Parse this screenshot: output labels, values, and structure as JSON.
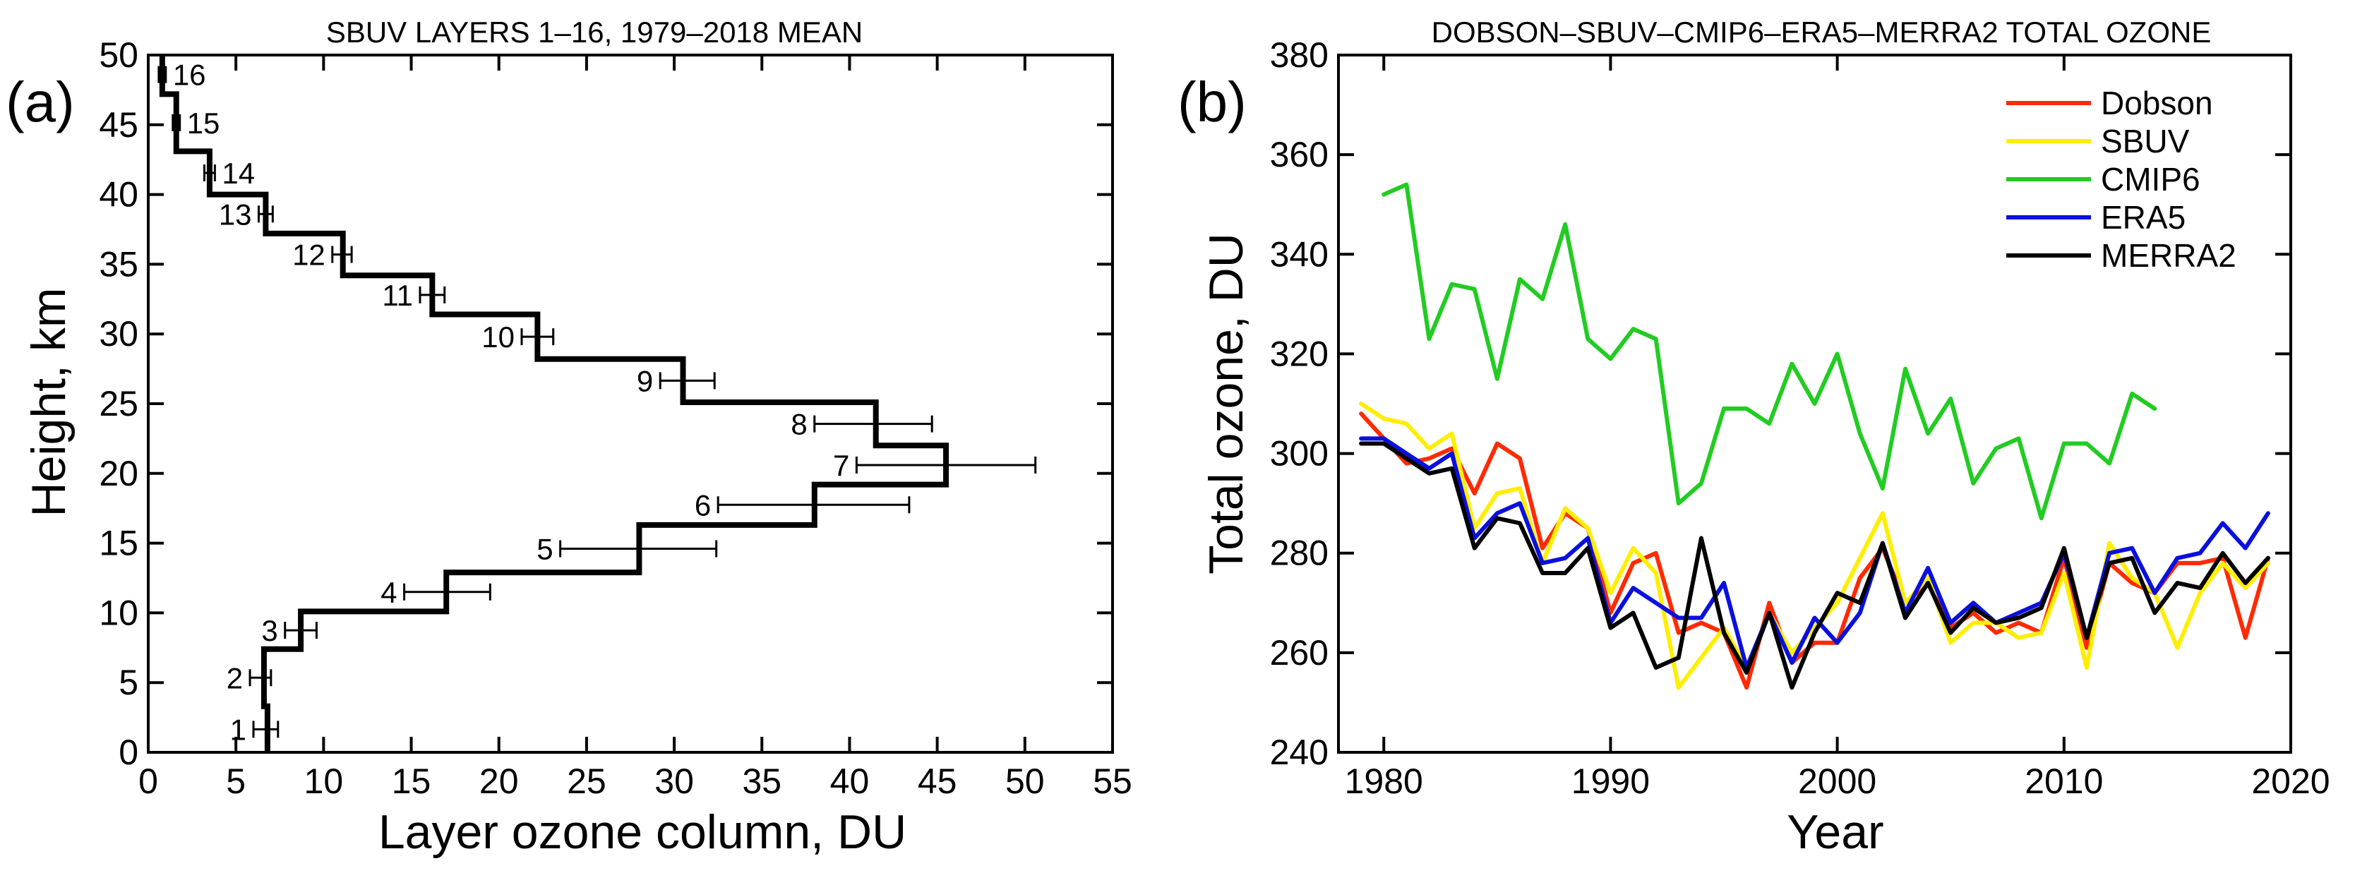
{
  "chart_data": [
    {
      "panel_label": "(a)",
      "type": "line",
      "orientation": "vertical-profile",
      "title": "SBUV LAYERS 1–16, 1979–2018 MEAN",
      "xlabel": "Layer  ozone column, DU",
      "ylabel": "Height, km",
      "xlim": [
        0,
        55
      ],
      "ylim": [
        0,
        50
      ],
      "xticks": [
        0,
        5,
        10,
        15,
        20,
        25,
        30,
        35,
        40,
        45,
        50,
        55
      ],
      "yticks": [
        0,
        5,
        10,
        15,
        20,
        25,
        30,
        35,
        40,
        45,
        50
      ],
      "grid": false,
      "layers": [
        {
          "label": "1",
          "bottom": 0,
          "top": 3.3,
          "value": 6.8,
          "err_lo": 6.0,
          "err_hi": 7.4
        },
        {
          "label": "2",
          "bottom": 3.3,
          "top": 7.4,
          "value": 6.6,
          "err_lo": 5.8,
          "err_hi": 7.0
        },
        {
          "label": "3",
          "bottom": 7.4,
          "top": 10.1,
          "value": 8.7,
          "err_lo": 7.8,
          "err_hi": 9.6
        },
        {
          "label": "4",
          "bottom": 10.1,
          "top": 12.9,
          "value": 17.0,
          "err_lo": 14.6,
          "err_hi": 19.5
        },
        {
          "label": "5",
          "bottom": 12.9,
          "top": 16.3,
          "value": 28.0,
          "err_lo": 23.5,
          "err_hi": 32.4
        },
        {
          "label": "6",
          "bottom": 16.3,
          "top": 19.2,
          "value": 38.0,
          "err_lo": 32.5,
          "err_hi": 43.4
        },
        {
          "label": "7",
          "bottom": 19.2,
          "top": 22.0,
          "value": 45.5,
          "err_lo": 40.4,
          "err_hi": 50.6
        },
        {
          "label": "8",
          "bottom": 22.0,
          "top": 25.1,
          "value": 41.5,
          "err_lo": 38.0,
          "err_hi": 44.7
        },
        {
          "label": "9",
          "bottom": 25.1,
          "top": 28.2,
          "value": 30.5,
          "err_lo": 29.2,
          "err_hi": 32.3
        },
        {
          "label": "10",
          "bottom": 28.2,
          "top": 31.4,
          "value": 22.2,
          "err_lo": 21.3,
          "err_hi": 23.1
        },
        {
          "label": "11",
          "bottom": 31.4,
          "top": 34.2,
          "value": 16.2,
          "err_lo": 15.5,
          "err_hi": 16.9
        },
        {
          "label": "12",
          "bottom": 34.2,
          "top": 37.2,
          "value": 11.1,
          "err_lo": 10.5,
          "err_hi": 11.6
        },
        {
          "label": "13",
          "bottom": 37.2,
          "top": 40.0,
          "value": 6.7,
          "err_lo": 6.3,
          "err_hi": 7.1
        },
        {
          "label": "14",
          "bottom": 40.0,
          "top": 43.1,
          "value": 3.5,
          "err_lo": 3.2,
          "err_hi": 3.8
        },
        {
          "label": "15",
          "bottom": 43.1,
          "top": 47.2,
          "value": 1.6,
          "err_lo": 1.4,
          "err_hi": 1.8
        },
        {
          "label": "16",
          "bottom": 47.2,
          "top": 50.0,
          "value": 0.8,
          "err_lo": 0.6,
          "err_hi": 1.0
        }
      ]
    },
    {
      "panel_label": "(b)",
      "type": "line",
      "title": "DOBSON–SBUV–CMIP6–ERA5–MERRA2 TOTAL OZONE",
      "xlabel": "Year",
      "ylabel": "Total ozone, DU",
      "xlim": [
        1978,
        2020
      ],
      "ylim": [
        240,
        380
      ],
      "xticks": [
        1980,
        1990,
        2000,
        2010,
        2020
      ],
      "yticks": [
        240,
        260,
        280,
        300,
        320,
        340,
        360,
        380
      ],
      "grid": false,
      "legend_position": "top-right",
      "series": [
        {
          "name": "Dobson",
          "color": "#ff2a00",
          "x_start": 1979,
          "values": [
            308,
            303,
            298,
            299,
            301,
            292,
            302,
            299,
            281,
            288,
            285,
            268,
            278,
            280,
            264,
            266,
            264,
            253,
            270,
            258,
            262,
            262,
            275,
            281,
            270,
            274,
            265,
            268,
            264,
            266,
            264,
            279,
            261,
            278,
            274,
            272,
            278,
            278,
            279,
            263,
            279
          ]
        },
        {
          "name": "SBUV",
          "color": "#ffee00",
          "x_start": 1979,
          "values": [
            310,
            307,
            306,
            301,
            304,
            285,
            292,
            293,
            278,
            289,
            285,
            272,
            281,
            276,
            253,
            259,
            265,
            257,
            268,
            260,
            265,
            270,
            279,
            288,
            270,
            275,
            262,
            266,
            266,
            263,
            264,
            276,
            257,
            282,
            275,
            272,
            261,
            272,
            278,
            273,
            278
          ]
        },
        {
          "name": "CMIP6",
          "color": "#22cc22",
          "x_start": 1980,
          "values": [
            352,
            354,
            323,
            334,
            333,
            315,
            335,
            331,
            346,
            323,
            319,
            325,
            323,
            290,
            294,
            309,
            309,
            306,
            318,
            310,
            320,
            304,
            293,
            317,
            304,
            311,
            294,
            301,
            303,
            287,
            302,
            302,
            298,
            312,
            309
          ]
        },
        {
          "name": "ERA5",
          "color": "#0a10dd",
          "x_start": 1979,
          "values": [
            303,
            303,
            300,
            297,
            300,
            283,
            288,
            290,
            278,
            279,
            283,
            266,
            273,
            270,
            267,
            267,
            274,
            257,
            268,
            258,
            267,
            262,
            268,
            282,
            268,
            277,
            266,
            270,
            266,
            268,
            270,
            280,
            263,
            280,
            281,
            272,
            279,
            280,
            286,
            281,
            288
          ]
        },
        {
          "name": "MERRA2",
          "color": "#000000",
          "x_start": 1979,
          "values": [
            302,
            302,
            299,
            296,
            297,
            281,
            287,
            286,
            276,
            276,
            281,
            265,
            268,
            257,
            259,
            283,
            264,
            256,
            268,
            253,
            264,
            272,
            270,
            282,
            267,
            274,
            264,
            269,
            266,
            267,
            269,
            281,
            263,
            278,
            279,
            268,
            274,
            273,
            280,
            274,
            279
          ]
        }
      ]
    }
  ]
}
